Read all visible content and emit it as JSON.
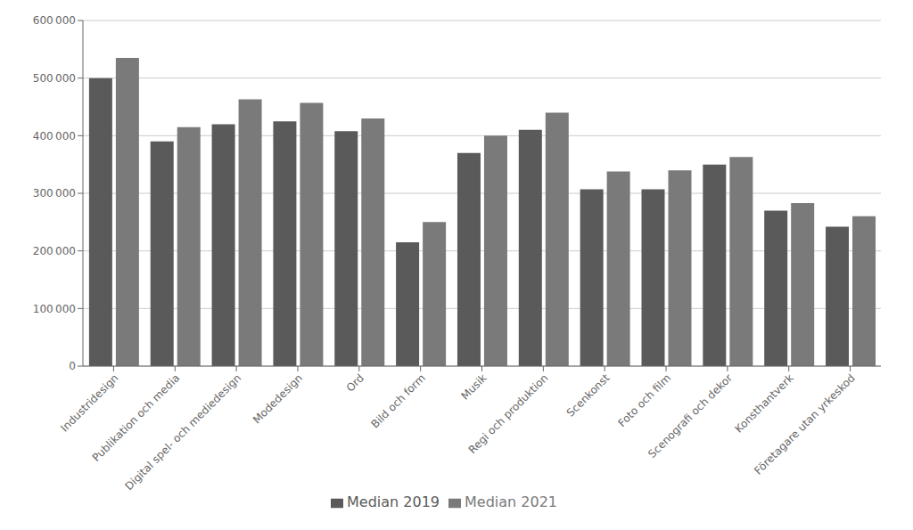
{
  "chart_data": {
    "type": "bar",
    "categories": [
      "Industridesign",
      "Publikation och media",
      "Digital spel- och mediedesign",
      "Modedesign",
      "Ord",
      "Bild och form",
      "Musik",
      "Regi och produktion",
      "Scenkonst",
      "Foto och film",
      "Scenografi och dekor",
      "Konsthantverk",
      "Företagare utan yrkeskod"
    ],
    "series": [
      {
        "name": "Median 2019",
        "color": "#5a5a5a",
        "values": [
          500000,
          390000,
          420000,
          425000,
          408000,
          215000,
          370000,
          410000,
          307000,
          307000,
          350000,
          270000,
          242000
        ]
      },
      {
        "name": "Median 2021",
        "color": "#7a7a7a",
        "values": [
          535000,
          415000,
          463000,
          457000,
          430000,
          250000,
          400000,
          440000,
          338000,
          340000,
          363000,
          283000,
          260000
        ]
      }
    ],
    "ylim": [
      0,
      600000
    ],
    "yticks": [
      0,
      {
        "value": 100000,
        "label": "100 000"
      },
      {
        "value": 200000,
        "label": "200 000"
      },
      {
        "value": 300000,
        "label": "300 000"
      },
      {
        "value": 400000,
        "label": "400 000"
      },
      {
        "value": 500000,
        "label": "500 000"
      },
      {
        "value": 600000,
        "label": "600 000"
      }
    ],
    "grid": true,
    "legend": "bottom"
  }
}
